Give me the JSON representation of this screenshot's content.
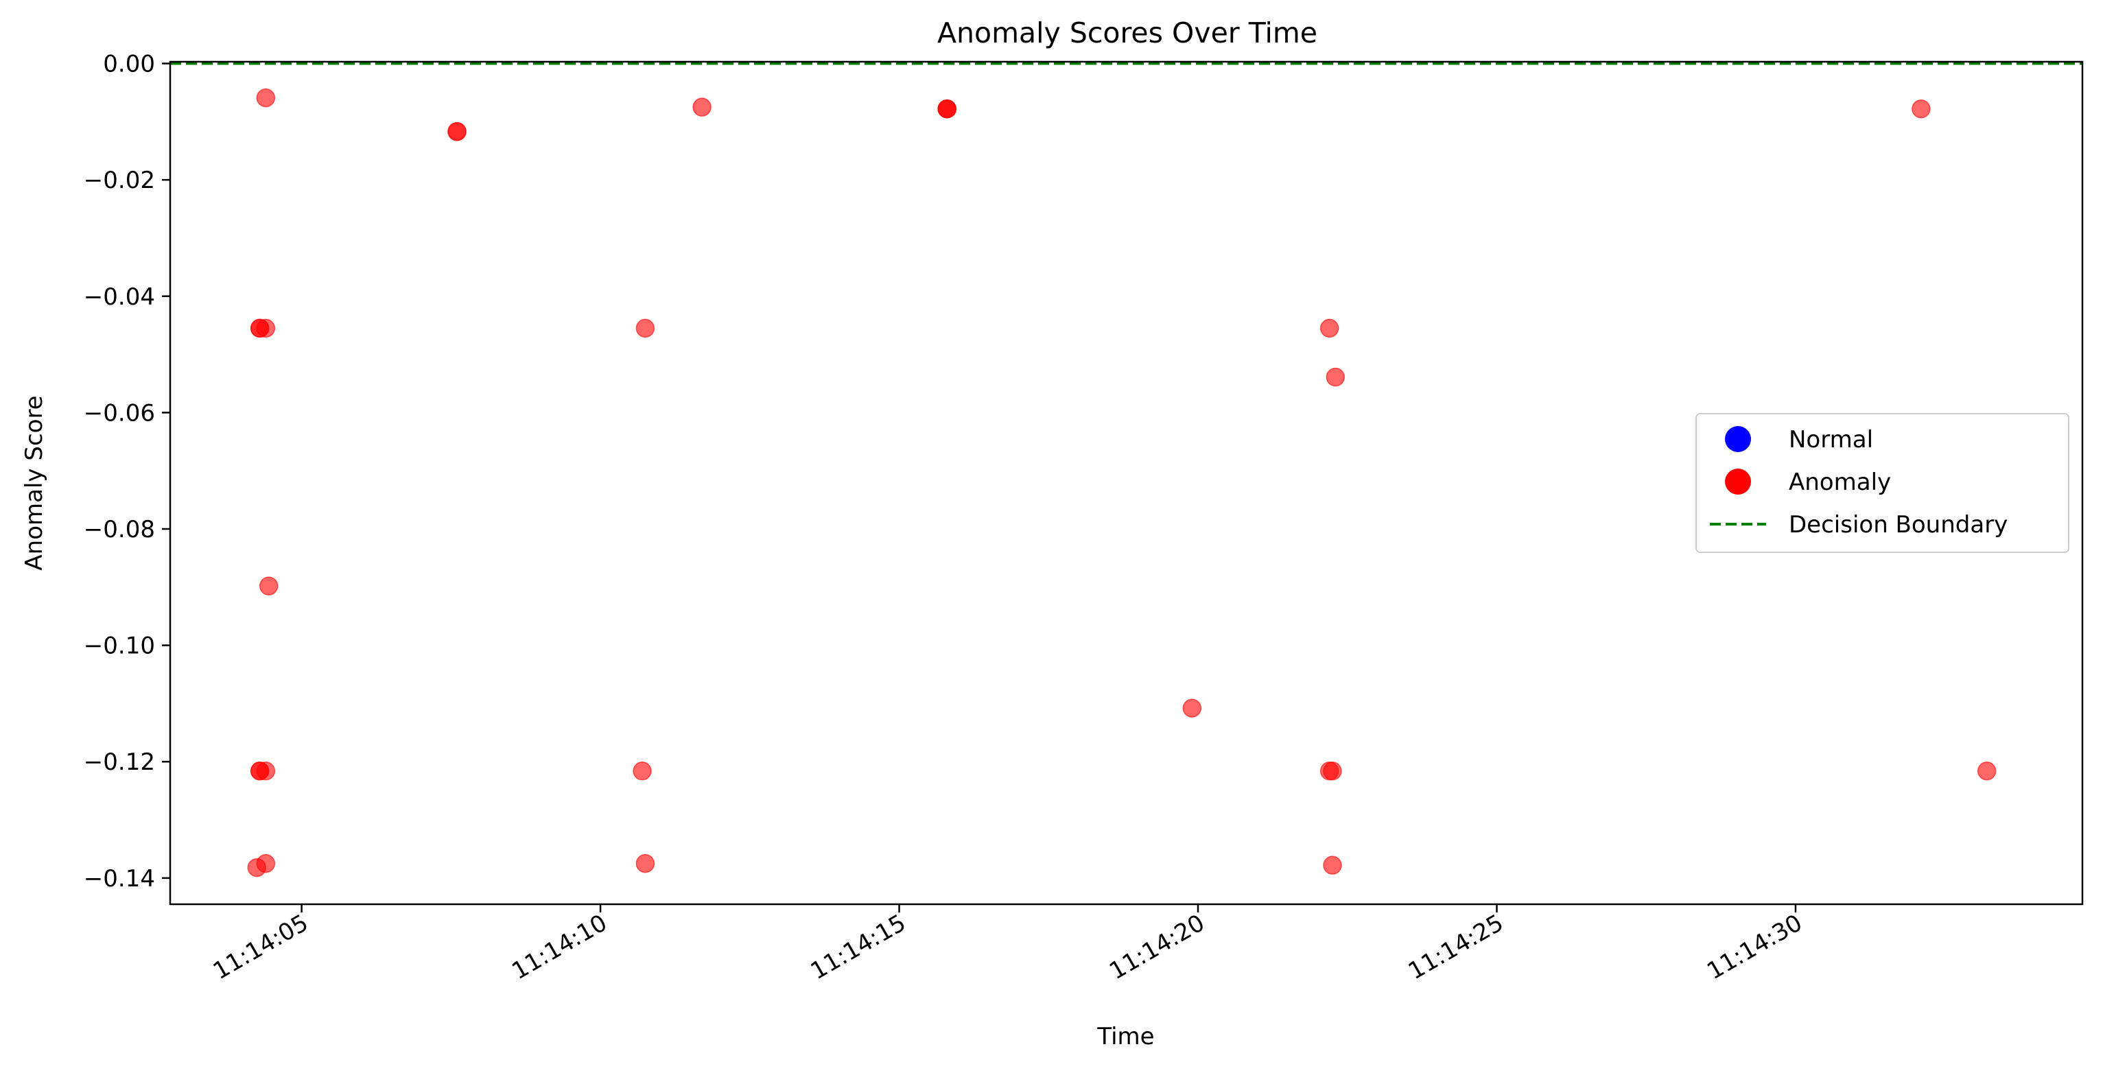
{
  "colors": {
    "normal": "#0000ff",
    "anomaly": "#ff0000",
    "boundary": "#008000"
  },
  "chart_data": {
    "type": "scatter",
    "title": "Anomaly Scores Over Time",
    "xlabel": "Time",
    "ylabel": "Anomaly Score",
    "xlim": [
      "11:14:02.8",
      "11:14:34.8"
    ],
    "ylim": [
      -0.1445,
      0.0003
    ],
    "x_ticks": [
      "11:14:05",
      "11:14:10",
      "11:14:15",
      "11:14:20",
      "11:14:25",
      "11:14:30"
    ],
    "y_ticks": [
      "0.00",
      "−0.02",
      "−0.04",
      "−0.06",
      "−0.08",
      "−0.10",
      "−0.12",
      "−0.14"
    ],
    "y_tick_values": [
      0,
      -0.02,
      -0.04,
      -0.06,
      -0.08,
      -0.1,
      -0.12,
      -0.14
    ],
    "grid": false,
    "legend_position": "center-right",
    "decision_boundary": 0,
    "legend": [
      {
        "label": "Normal",
        "kind": "marker",
        "color_key": "normal"
      },
      {
        "label": "Anomaly",
        "kind": "marker",
        "color_key": "anomaly"
      },
      {
        "label": "Decision Boundary",
        "kind": "dashed-line",
        "color_key": "boundary"
      }
    ],
    "series": [
      {
        "name": "Normal",
        "points": []
      },
      {
        "name": "Anomaly",
        "points": [
          {
            "x": "11:14:04.25",
            "y": -0.1382
          },
          {
            "x": "11:14:04.3",
            "y": -0.1216
          },
          {
            "x": "11:14:04.3",
            "y": -0.1216
          },
          {
            "x": "11:14:04.3",
            "y": -0.0455
          },
          {
            "x": "11:14:04.3",
            "y": -0.0455
          },
          {
            "x": "11:14:04.4",
            "y": -0.0059
          },
          {
            "x": "11:14:04.4",
            "y": -0.0455
          },
          {
            "x": "11:14:04.4",
            "y": -0.1216
          },
          {
            "x": "11:14:04.4",
            "y": -0.1375
          },
          {
            "x": "11:14:04.45",
            "y": -0.0898
          },
          {
            "x": "11:14:07.6",
            "y": -0.0117
          },
          {
            "x": "11:14:07.6",
            "y": -0.0117
          },
          {
            "x": "11:14:10.7",
            "y": -0.1216
          },
          {
            "x": "11:14:10.75",
            "y": -0.0455
          },
          {
            "x": "11:14:10.75",
            "y": -0.1375
          },
          {
            "x": "11:14:11.7",
            "y": -0.0075
          },
          {
            "x": "11:14:15.8",
            "y": -0.0078
          },
          {
            "x": "11:14:15.8",
            "y": -0.0078
          },
          {
            "x": "11:14:15.8",
            "y": -0.0078
          },
          {
            "x": "11:14:19.9",
            "y": -0.1108
          },
          {
            "x": "11:14:22.2",
            "y": -0.0455
          },
          {
            "x": "11:14:22.2",
            "y": -0.1216
          },
          {
            "x": "11:14:22.25",
            "y": -0.1216
          },
          {
            "x": "11:14:22.25",
            "y": -0.1378
          },
          {
            "x": "11:14:22.3",
            "y": -0.0539
          },
          {
            "x": "11:14:32.1",
            "y": -0.0078
          },
          {
            "x": "11:14:33.2",
            "y": -0.1216
          }
        ]
      }
    ]
  }
}
